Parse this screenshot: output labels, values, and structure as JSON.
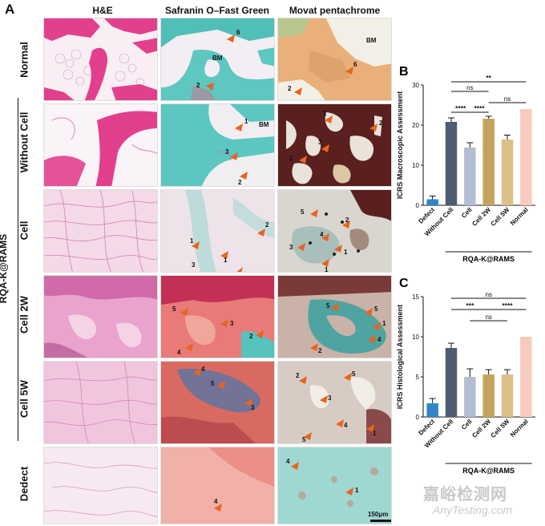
{
  "panel_a": {
    "letter": "A",
    "columns": [
      "H&E",
      "Safranin O–Fast Green",
      "Movat pentachrome"
    ],
    "rows": [
      "Normal",
      "Without Cell",
      "Cell",
      "Cell 2W",
      "Cell 5W",
      "Dedect"
    ],
    "group_label": "RQA-K@RAMS",
    "scale_bar": "150μm",
    "annotations": {
      "normal_safranin": [
        "6",
        "BM",
        "2"
      ],
      "normal_movat": [
        "BM",
        "6",
        "2"
      ],
      "without_safranin": [
        "1",
        "BM",
        "3",
        "2"
      ],
      "without_movat": [
        "1",
        "2",
        "3",
        "2"
      ],
      "cell_safranin": [
        "2",
        "1",
        "3",
        "1"
      ],
      "cell_movat": [
        "5",
        "2",
        "4",
        "3",
        "1",
        "1"
      ],
      "cell2w_safranin": [
        "5",
        "3",
        "2",
        "4"
      ],
      "cell2w_movat": [
        "5",
        "5",
        "1",
        "4",
        "2"
      ],
      "cell5w_safranin": [
        "4",
        "5",
        "3"
      ],
      "cell5w_movat": [
        "2",
        "3",
        "5",
        "4",
        "1",
        "5"
      ],
      "dedect_safranin": [
        "4"
      ],
      "dedect_movat": [
        "4",
        "1"
      ]
    }
  },
  "chart_data": [
    {
      "panel": "B",
      "type": "bar",
      "ylabel": "ICRS Macroscopic Assessment",
      "ylim": [
        0,
        30
      ],
      "yticks": [
        0,
        10,
        20,
        30
      ],
      "categories": [
        "Defect",
        "Without Cell",
        "Cell",
        "Cell 2W",
        "Cell 5W",
        "Normal"
      ],
      "values": [
        1.5,
        20.8,
        14.4,
        21.6,
        16.4,
        24.0
      ],
      "errors": [
        0.8,
        1.0,
        1.2,
        0.6,
        1.1,
        0
      ],
      "colors": [
        "#2e86c8",
        "#4f5d73",
        "#b2bdd0",
        "#c4a45c",
        "#dcc08a",
        "#f6cbbd"
      ],
      "group_label": "RQA-K@RAMS",
      "significance": [
        {
          "label": "**",
          "from": 1,
          "to": 5
        },
        {
          "label": "ns",
          "from": 1,
          "to": 3
        },
        {
          "label": "ns",
          "from": 3,
          "to": 5
        },
        {
          "label": "****",
          "from": 1,
          "to": 2
        },
        {
          "label": "****",
          "from": 2,
          "to": 3
        }
      ]
    },
    {
      "panel": "C",
      "type": "bar",
      "ylabel": "ICRS Histological Assessment",
      "ylim": [
        0,
        15
      ],
      "yticks": [
        0,
        5,
        10,
        15
      ],
      "categories": [
        "Defect",
        "Without Cell",
        "Cell",
        "Cell 2W",
        "Cell 5W",
        "Normal"
      ],
      "values": [
        1.7,
        8.6,
        5.0,
        5.3,
        5.3,
        10.0
      ],
      "errors": [
        0.6,
        0.6,
        1.0,
        0.6,
        0.6,
        0
      ],
      "colors": [
        "#2e86c8",
        "#4f5d73",
        "#b2bdd0",
        "#c4a45c",
        "#dcc08a",
        "#f6cbbd"
      ],
      "group_label": "RQA-K@RAMS",
      "significance": [
        {
          "label": "ns",
          "from": 1,
          "to": 5
        },
        {
          "label": "***",
          "from": 1,
          "to": 3
        },
        {
          "label": "****",
          "from": 3,
          "to": 5
        },
        {
          "label": "ns",
          "from": 2,
          "to": 4
        }
      ]
    }
  ],
  "watermark": {
    "line1": "嘉峪检测网",
    "line2": "AnyTesting.com"
  }
}
